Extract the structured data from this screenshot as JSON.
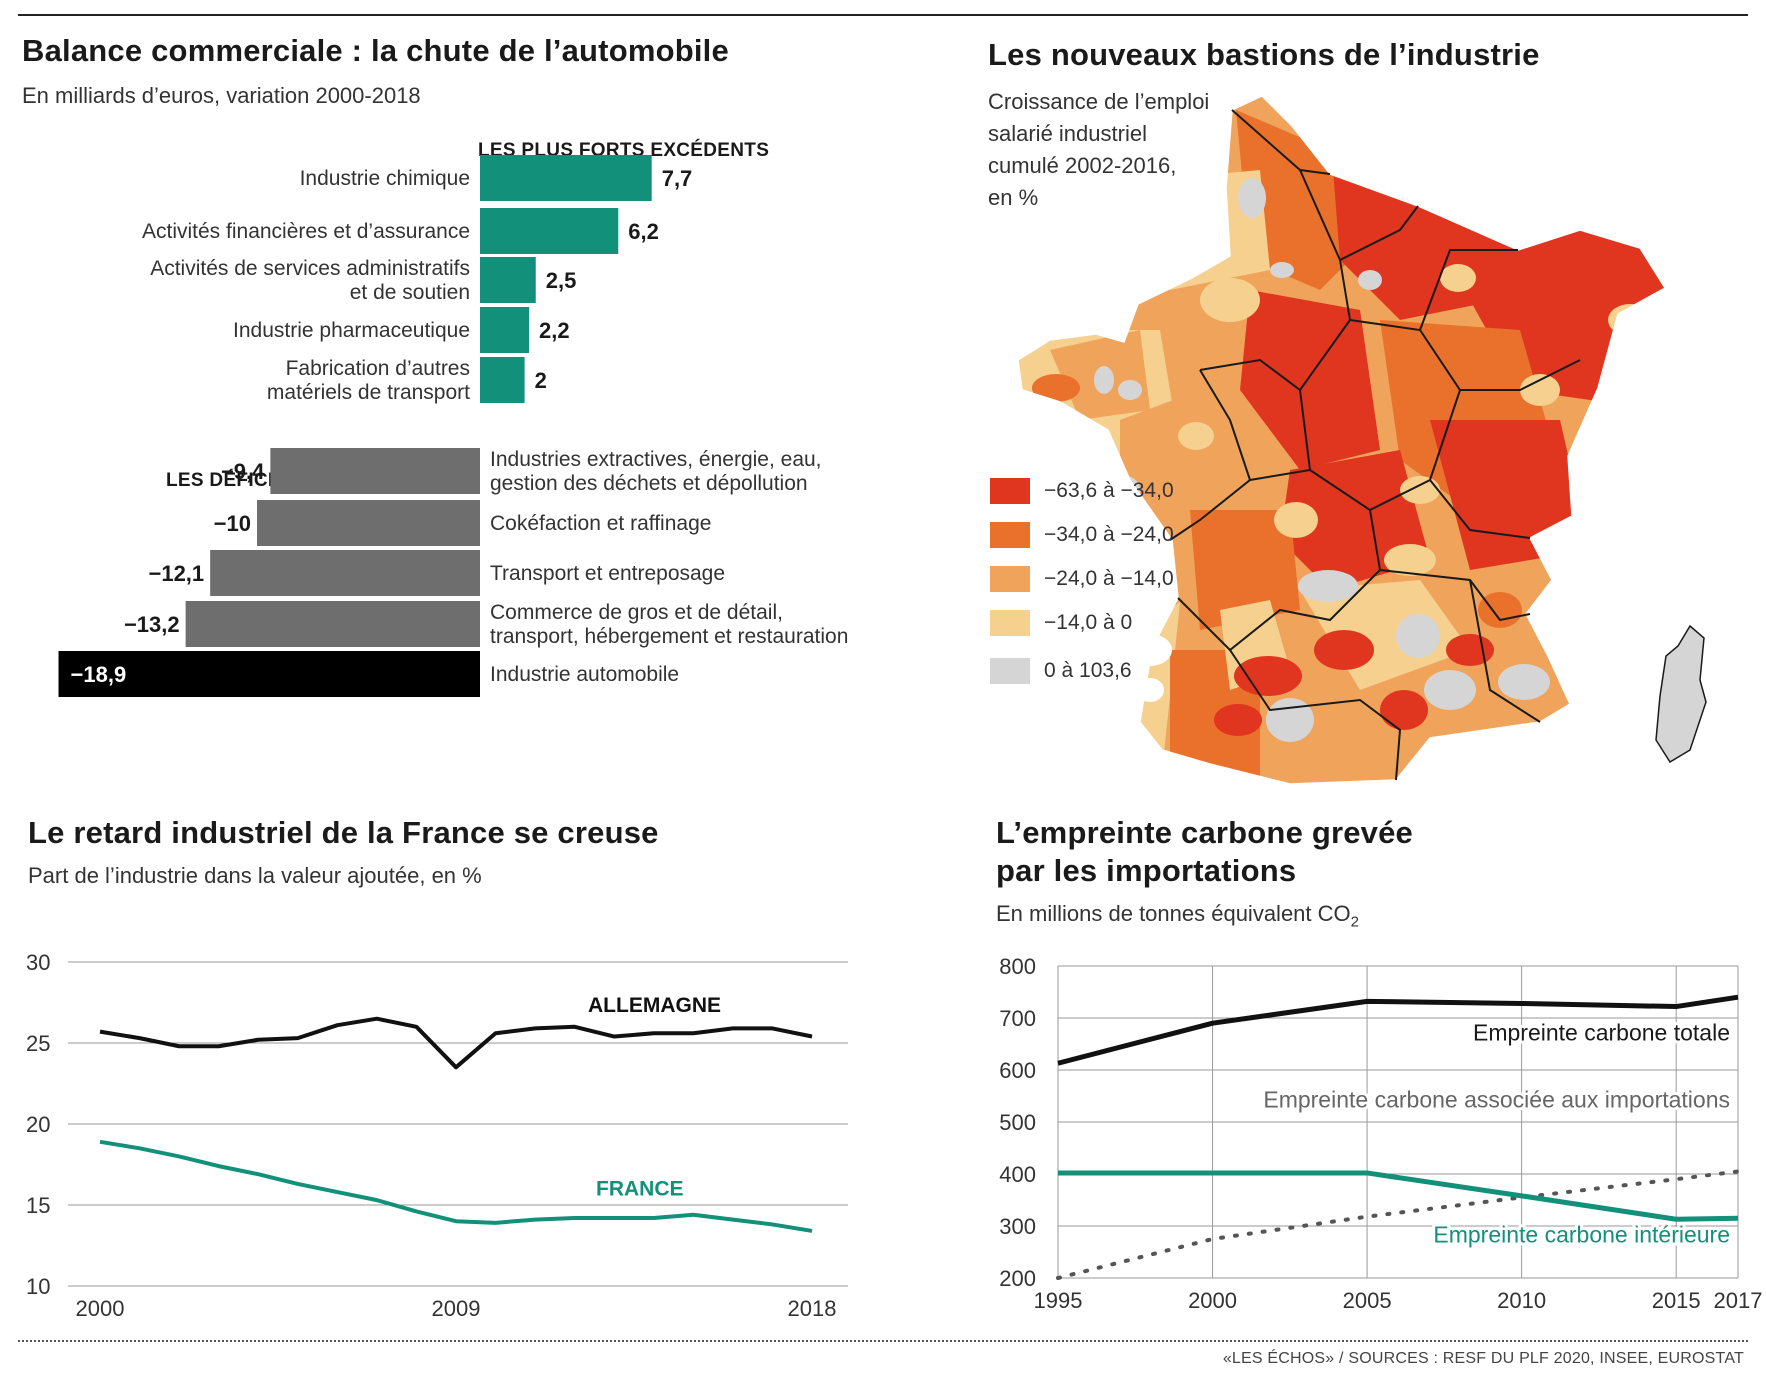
{
  "footer": {
    "source": "«LES ÉCHOS» / SOURCES : RESF DU PLF 2020, INSEE, EUROSTAT"
  },
  "chart_data": [
    {
      "type": "bar",
      "orientation": "horizontal",
      "title": "Balance commerciale : la chute de l’automobile",
      "subtitle": "En milliards d’euros, variation 2000-2018",
      "groups": [
        {
          "label": "LES PLUS FORTS EXCÉDENTS",
          "color": "#13907a",
          "bars": [
            {
              "category": [
                "Industrie chimique"
              ],
              "value": 7.7,
              "value_label": "7,7"
            },
            {
              "category": [
                "Activités financières et d’assurance"
              ],
              "value": 6.2,
              "value_label": "6,2"
            },
            {
              "category": [
                "Activités de services administratifs",
                "et de soutien"
              ],
              "value": 2.5,
              "value_label": "2,5"
            },
            {
              "category": [
                "Industrie pharmaceutique"
              ],
              "value": 2.2,
              "value_label": "2,2"
            },
            {
              "category": [
                "Fabrication d’autres",
                "matériels de transport"
              ],
              "value": 2,
              "value_label": "2"
            }
          ]
        },
        {
          "label": "LES DÉFICITS LES PLUS GROS",
          "color": "#6e6e6e",
          "bars": [
            {
              "category": [
                "Industries extractives, énergie, eau,",
                "gestion des déchets et dépollution"
              ],
              "value": -9.4,
              "value_label": "−9,4"
            },
            {
              "category": [
                "Cokéfaction et raffinage"
              ],
              "value": -10,
              "value_label": "−10"
            },
            {
              "category": [
                "Transport et entreposage"
              ],
              "value": -12.1,
              "value_label": "−12,1"
            },
            {
              "category": [
                "Commerce de gros et de détail,",
                "transport, hébergement et restauration"
              ],
              "value": -13.2,
              "value_label": "−13,2"
            },
            {
              "category": [
                "Industrie automobile"
              ],
              "value": -18.9,
              "value_label": "−18,9",
              "color": "#000000"
            }
          ]
        }
      ]
    },
    {
      "type": "map",
      "title": "Les nouveaux bastions de l’industrie",
      "subtitle": [
        "Croissance de l’emploi",
        "salarié industriel",
        "cumulé 2002-2016,",
        "en %"
      ],
      "legend": [
        {
          "label": "−63,6 à −34,0",
          "color": "#e0351f"
        },
        {
          "label": "−34,0 à −24,0",
          "color": "#e9712c"
        },
        {
          "label": "−24,0 à −14,0",
          "color": "#f0a35a"
        },
        {
          "label": "−14,0 à 0",
          "color": "#f6d08e"
        },
        {
          "label": "0 à 103,6",
          "color": "#d5d5d5"
        }
      ]
    },
    {
      "type": "line",
      "title": "Le retard industriel de la France se creuse",
      "subtitle": "Part de l’industrie dans la valeur ajoutée, en %",
      "x": [
        2000,
        2001,
        2002,
        2003,
        2004,
        2005,
        2006,
        2007,
        2008,
        2009,
        2010,
        2011,
        2012,
        2013,
        2014,
        2015,
        2016,
        2017,
        2018
      ],
      "x_ticks": [
        "2000",
        "2009",
        "2018"
      ],
      "ylim": [
        10,
        30
      ],
      "y_ticks": [
        "30",
        "25",
        "20",
        "15",
        "10"
      ],
      "grid": true,
      "series": [
        {
          "name": "ALLEMAGNE",
          "color": "#111111",
          "values": [
            25.7,
            25.3,
            24.8,
            24.8,
            25.2,
            25.3,
            26.1,
            26.5,
            26.0,
            23.5,
            25.6,
            25.9,
            26.0,
            25.4,
            25.6,
            25.6,
            25.9,
            25.9,
            25.4
          ]
        },
        {
          "name": "FRANCE",
          "color": "#13907a",
          "values": [
            18.9,
            18.5,
            18.0,
            17.4,
            16.9,
            16.3,
            15.8,
            15.3,
            14.6,
            14.0,
            13.9,
            14.1,
            14.2,
            14.2,
            14.2,
            14.4,
            14.1,
            13.8,
            13.4
          ]
        }
      ]
    },
    {
      "type": "line",
      "title": [
        "L’empreinte carbone grevée",
        "par les importations"
      ],
      "subtitle": "En millions de tonnes équivalent CO",
      "subtitle_sub": "2",
      "x_ticks": [
        "1995",
        "2000",
        "2005",
        "2010",
        "2015",
        "2017"
      ],
      "xlim": [
        1995,
        2017
      ],
      "ylim": [
        200,
        800
      ],
      "y_ticks": [
        "800",
        "700",
        "600",
        "500",
        "400",
        "300",
        "200"
      ],
      "grid": true,
      "series": [
        {
          "name": "Empreinte carbone totale",
          "color": "#111111",
          "style": "solid",
          "x": [
            1995,
            2000,
            2005,
            2010,
            2015,
            2017
          ],
          "values": [
            613,
            690,
            732,
            728,
            722,
            740
          ]
        },
        {
          "name": "Empreinte carbone associée aux importations",
          "color": "#555555",
          "style": "dotted",
          "x": [
            1995,
            2000,
            2005,
            2010,
            2015,
            2017
          ],
          "values": [
            200,
            275,
            318,
            355,
            390,
            405
          ]
        },
        {
          "name": "Empreinte carbone intérieure",
          "color": "#13907a",
          "style": "solid",
          "x": [
            1995,
            2000,
            2005,
            2010,
            2015,
            2017
          ],
          "values": [
            402,
            402,
            402,
            358,
            313,
            315
          ]
        }
      ]
    }
  ]
}
